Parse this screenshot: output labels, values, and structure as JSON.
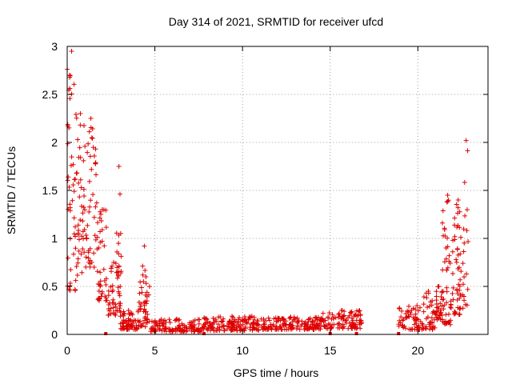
{
  "chart_data": {
    "type": "scatter",
    "title": "Day 314 of 2021, SRMTID for receiver ufcd",
    "xlabel": "GPS time / hours",
    "ylabel": "SRMTID / TECUs",
    "xlim": [
      0,
      24
    ],
    "ylim": [
      0,
      3
    ],
    "x_ticks": [
      0,
      5,
      10,
      15,
      20
    ],
    "x_tick_labels": [
      "0",
      "5",
      "10",
      "15",
      "20"
    ],
    "y_ticks": [
      0,
      0.5,
      1,
      1.5,
      2,
      2.5,
      3
    ],
    "y_tick_labels": [
      "0",
      "0.5",
      "1",
      "1.5",
      "2",
      "2.5",
      "3"
    ],
    "grid": true,
    "marker": "+",
    "color": "#dd0000",
    "series": [
      {
        "name": "SRMTID",
        "segments": [
          {
            "x_start": 0.0,
            "x_end": 0.5,
            "count": 45,
            "low": 0.45,
            "high": 2.95
          },
          {
            "x_start": 0.5,
            "x_end": 1.0,
            "count": 40,
            "low": 0.6,
            "high": 2.3
          },
          {
            "x_start": 1.0,
            "x_end": 1.7,
            "count": 45,
            "low": 0.7,
            "high": 2.25
          },
          {
            "x_start": 1.7,
            "x_end": 2.3,
            "count": 40,
            "low": 0.35,
            "high": 1.3
          },
          {
            "x_start": 2.3,
            "x_end": 3.0,
            "count": 45,
            "low": 0.2,
            "high": 0.75
          },
          {
            "x_start": 2.8,
            "x_end": 3.1,
            "count": 14,
            "low": 0.3,
            "high": 1.75
          },
          {
            "x_start": 3.0,
            "x_end": 4.0,
            "count": 60,
            "low": 0.05,
            "high": 0.25
          },
          {
            "x_start": 4.0,
            "x_end": 4.7,
            "count": 45,
            "low": 0.08,
            "high": 0.55
          },
          {
            "x_start": 4.3,
            "x_end": 4.5,
            "count": 4,
            "low": 0.6,
            "high": 0.92
          },
          {
            "x_start": 4.7,
            "x_end": 7.8,
            "count": 130,
            "low": 0.03,
            "high": 0.16
          },
          {
            "x_start": 7.8,
            "x_end": 11.0,
            "count": 150,
            "low": 0.04,
            "high": 0.19
          },
          {
            "x_start": 11.0,
            "x_end": 14.5,
            "count": 150,
            "low": 0.05,
            "high": 0.18
          },
          {
            "x_start": 14.5,
            "x_end": 16.8,
            "count": 100,
            "low": 0.06,
            "high": 0.25
          },
          {
            "x_start": 18.9,
            "x_end": 21.0,
            "count": 90,
            "low": 0.05,
            "high": 0.3
          },
          {
            "x_start": 20.3,
            "x_end": 20.9,
            "count": 8,
            "low": 0.3,
            "high": 0.45
          },
          {
            "x_start": 21.0,
            "x_end": 21.4,
            "count": 30,
            "low": 0.15,
            "high": 0.5
          },
          {
            "x_start": 21.4,
            "x_end": 22.0,
            "count": 50,
            "low": 0.1,
            "high": 1.45
          },
          {
            "x_start": 22.0,
            "x_end": 22.6,
            "count": 50,
            "low": 0.2,
            "high": 1.4
          },
          {
            "x_start": 22.6,
            "x_end": 22.9,
            "count": 16,
            "low": 0.3,
            "high": 2.02
          }
        ],
        "isolated_points": [
          [
            2.2,
            0.0
          ],
          [
            7.8,
            0.0
          ],
          [
            15.0,
            0.0
          ],
          [
            16.5,
            0.0
          ],
          [
            18.9,
            0.0
          ]
        ]
      }
    ]
  }
}
